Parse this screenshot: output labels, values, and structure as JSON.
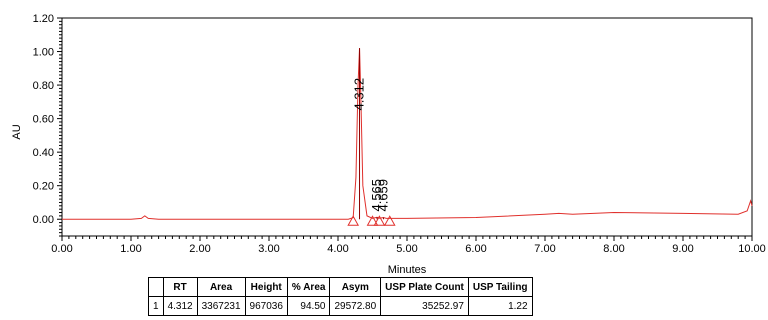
{
  "chart_data": {
    "type": "line",
    "ylabel": "AU",
    "xlabel": "Minutes",
    "xlim": [
      0,
      10
    ],
    "ylim": [
      -0.1,
      1.2
    ],
    "x_ticks": [
      "0.00",
      "1.00",
      "2.00",
      "3.00",
      "4.00",
      "5.00",
      "6.00",
      "7.00",
      "8.00",
      "9.00",
      "10.00"
    ],
    "y_ticks": [
      "0.00",
      "0.20",
      "0.40",
      "0.60",
      "0.80",
      "1.00",
      "1.20"
    ],
    "trace_color": "#e0302c",
    "grid": false,
    "series": [
      {
        "x": [
          0,
          0.5,
          1.0,
          1.15,
          1.2,
          1.25,
          1.4,
          2.0,
          3.0,
          3.8,
          4.15,
          4.22,
          4.26,
          4.29,
          4.312,
          4.33,
          4.36,
          4.42,
          4.5,
          4.565,
          4.6,
          4.659,
          4.7,
          4.8,
          5.0,
          6.0,
          7.0,
          7.2,
          7.4,
          8.0,
          9.0,
          9.8,
          9.93,
          9.98,
          10.0
        ],
        "y": [
          0.0,
          0.0,
          0.0,
          0.005,
          0.02,
          0.005,
          0.0,
          0.0,
          0.0,
          0.0,
          0.0,
          0.01,
          0.25,
          0.8,
          1.02,
          0.75,
          0.2,
          0.02,
          0.005,
          0.012,
          0.006,
          0.01,
          0.005,
          0.005,
          0.005,
          0.01,
          0.03,
          0.035,
          0.03,
          0.04,
          0.035,
          0.03,
          0.05,
          0.11,
          0.08
        ]
      }
    ],
    "peaks": [
      {
        "label": "4.312",
        "x": 4.312,
        "y": 1.02
      },
      {
        "label": "4.565",
        "x": 4.565,
        "y": 0.012
      },
      {
        "label": "4.659",
        "x": 4.659,
        "y": 0.01
      }
    ],
    "baseline_markers_x": [
      4.22,
      4.5,
      4.6,
      4.75
    ]
  },
  "table": {
    "headers": [
      "",
      "RT",
      "Area",
      "Height",
      "% Area",
      "Asym",
      "USP Plate Count",
      "USP Tailing"
    ],
    "rows": [
      [
        "1",
        "4.312",
        "3367231",
        "967036",
        "94.50",
        "29572.80",
        "35252.97",
        "1.22"
      ]
    ]
  }
}
